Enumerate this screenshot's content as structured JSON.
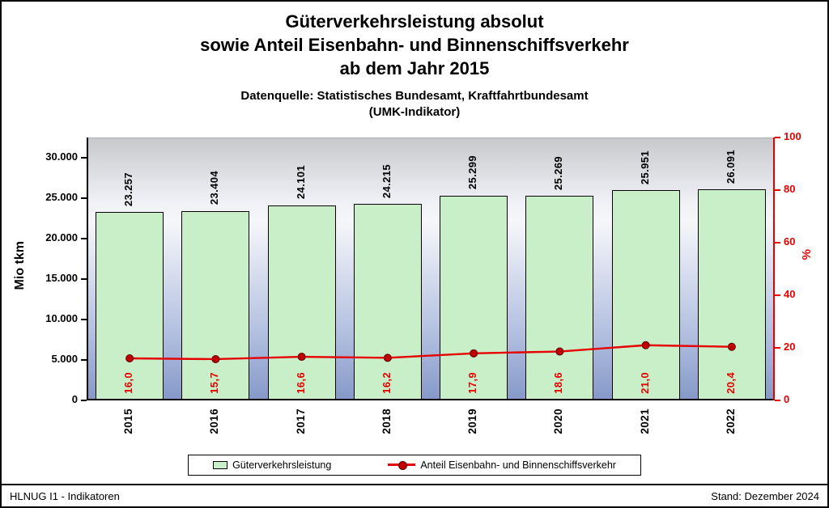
{
  "title": {
    "line1": "Güterverkehrsleistung absolut",
    "line2": "sowie Anteil Eisenbahn- und Binnenschiffsverkehr",
    "line3": "ab dem Jahr 2015"
  },
  "subtitle": {
    "line1": "Datenquelle: Statistisches Bundesamt, Kraftfahrtbundesamt",
    "line2": "(UMK-Indikator)"
  },
  "chart_data": {
    "type": "bar",
    "categories": [
      "2015",
      "2016",
      "2017",
      "2018",
      "2019",
      "2020",
      "2021",
      "2022"
    ],
    "series": [
      {
        "name": "Güterverkehrsleistung",
        "type": "bar",
        "axis": "left",
        "values": [
          23257,
          23404,
          24101,
          24215,
          25299,
          25269,
          25951,
          26091
        ],
        "labels": [
          "23.257",
          "23.404",
          "24.101",
          "24.215",
          "25.299",
          "25.269",
          "25.951",
          "26.091"
        ]
      },
      {
        "name": "Anteil Eisenbahn- und Binnenschiffsverkehr",
        "type": "line",
        "axis": "right",
        "values": [
          16.0,
          15.7,
          16.6,
          16.2,
          17.9,
          18.6,
          21.0,
          20.4
        ],
        "labels": [
          "16,0",
          "15,7",
          "16,6",
          "16,2",
          "17,9",
          "18,6",
          "21,0",
          "20,4"
        ]
      }
    ],
    "left_axis": {
      "title": "Mio tkm",
      "ticks": [
        0,
        5000,
        10000,
        15000,
        20000,
        25000,
        30000
      ],
      "tick_labels": [
        "0",
        "5.000",
        "10.000",
        "15.000",
        "20.000",
        "25.000",
        "30.000"
      ],
      "max": 32500
    },
    "right_axis": {
      "title": "%",
      "ticks": [
        0,
        20,
        40,
        60,
        80,
        100
      ],
      "tick_labels": [
        "0",
        "20",
        "40",
        "60",
        "80",
        "100"
      ],
      "max": 100
    },
    "grid": false,
    "legend_position": "bottom"
  },
  "legend": {
    "bar_label": "Güterverkehrsleistung",
    "line_label": "Anteil Eisenbahn- und Binnenschiffsverkehr"
  },
  "footer": {
    "left": "HLNUG I1 - Indikatoren",
    "right": "Stand: Dezember 2024"
  },
  "colors": {
    "bar_fill": "#c9efc9",
    "bar_border": "#000000",
    "line": "#e60000",
    "point_fill": "#c00000",
    "point_stroke": "#5a0000",
    "right_axis": "#e60000",
    "value_label_line": "#e60000"
  }
}
